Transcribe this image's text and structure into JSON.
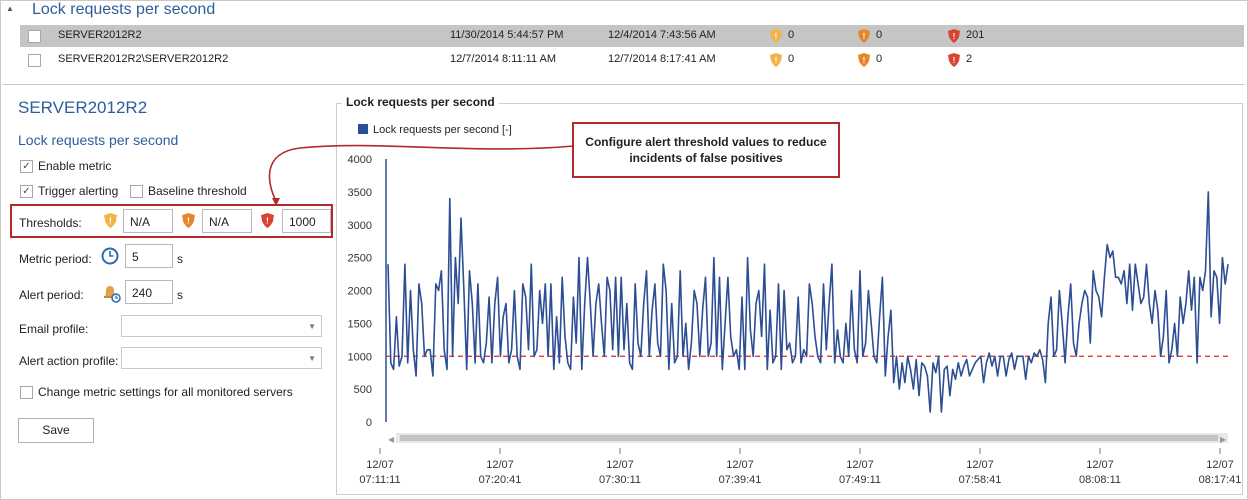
{
  "top_panel": {
    "title": "Lock requests per second",
    "rows": [
      {
        "server": "SERVER2012R2",
        "first": "11/30/2014 5:44:57 PM",
        "last": "12/4/2014 7:43:56 AM",
        "warn1": "0",
        "warn2": "0",
        "crit": "201",
        "selected": true
      },
      {
        "server": "SERVER2012R2\\SERVER2012R2",
        "first": "12/7/2014 8:11:11 AM",
        "last": "12/7/2014 8:17:41 AM",
        "warn1": "0",
        "warn2": "0",
        "crit": "2",
        "selected": false
      }
    ]
  },
  "settings": {
    "server_title": "SERVER2012R2",
    "metric_title": "Lock requests per second",
    "enable_metric": "Enable metric",
    "enable_metric_checked": true,
    "trigger_alerting": "Trigger alerting",
    "trigger_alerting_checked": true,
    "baseline_threshold": "Baseline threshold",
    "baseline_threshold_checked": false,
    "thresholds_label": "Thresholds:",
    "threshold_low": "N/A",
    "threshold_medium": "N/A",
    "threshold_high": "1000",
    "metric_period_label": "Metric period:",
    "metric_period_value": "5",
    "metric_period_unit": "s",
    "alert_period_label": "Alert period:",
    "alert_period_value": "240",
    "alert_period_unit": "s",
    "email_profile_label": "Email profile:",
    "alert_action_profile_label": "Alert action profile:",
    "change_all_label": "Change metric settings for all monitored servers",
    "change_all_checked": false,
    "save_label": "Save"
  },
  "callout_text": "Configure alert threshold values to reduce incidents of false positives",
  "colors": {
    "accent": "#2d5d9a",
    "series": "#2c4e94",
    "threshold": "#d62b2b",
    "highlight": "#b22a2a"
  },
  "chart_data": {
    "type": "line",
    "title": "Lock requests per second",
    "legend": "Lock requests per second [-]",
    "ylim": [
      0,
      4000
    ],
    "y_ticks": [
      0,
      500,
      1000,
      1500,
      2000,
      2500,
      3000,
      3500,
      4000
    ],
    "x_ticks": [
      [
        "12/07",
        "07:11:11"
      ],
      [
        "12/07",
        "07:20:41"
      ],
      [
        "12/07",
        "07:30:11"
      ],
      [
        "12/07",
        "07:39:41"
      ],
      [
        "12/07",
        "07:49:11"
      ],
      [
        "12/07",
        "07:58:41"
      ],
      [
        "12/07",
        "08:08:11"
      ],
      [
        "12/07",
        "08:17:41"
      ]
    ],
    "threshold": 1000,
    "series": [
      {
        "name": "Lock requests per second [-]",
        "values": [
          2400,
          900,
          800,
          1600,
          850,
          1000,
          2400,
          900,
          2000,
          1100,
          700,
          2100,
          1800,
          1000,
          1100,
          1100,
          700,
          2100,
          2000,
          2300,
          1100,
          800,
          3400,
          1000,
          2500,
          1800,
          3100,
          2000,
          800,
          2300,
          1800,
          900,
          2100,
          1000,
          900,
          1200,
          1900,
          900,
          1800,
          2200,
          1000,
          1600,
          1800,
          900,
          1100,
          2000,
          1000,
          800,
          2100,
          1900,
          1100,
          2400,
          1000,
          1100,
          2000,
          1500,
          2100,
          1000,
          2100,
          800,
          1600,
          900,
          2200,
          1300,
          900,
          800,
          1900,
          1200,
          2500,
          800,
          1800,
          2500,
          1800,
          1000,
          1800,
          2100,
          1500,
          1000,
          2200,
          2000,
          1100,
          2200,
          1000,
          2200,
          1100,
          1800,
          900,
          800,
          2100,
          1200,
          1000,
          1800,
          2300,
          1000,
          1700,
          2100,
          1200,
          1000,
          2400,
          2000,
          800,
          1800,
          900,
          1000,
          2300,
          1000,
          1500,
          800,
          1200,
          2000,
          1800,
          1000,
          1700,
          2200,
          1000,
          1200,
          2500,
          1000,
          2200,
          800,
          1500,
          2200,
          1300,
          1000,
          1100,
          800,
          1900,
          800,
          2500,
          1400,
          1000,
          1800,
          2000,
          1300,
          2400,
          800,
          1700,
          900,
          1000,
          2100,
          800,
          2000,
          1100,
          1200,
          900,
          1000,
          1900,
          900,
          1100,
          1000,
          2100,
          1800,
          1300,
          1000,
          900,
          2100,
          1100,
          1800,
          2400,
          900,
          1400,
          1000,
          900,
          1500,
          1000,
          2000,
          1100,
          900,
          2300,
          1000,
          1200,
          2000,
          1500,
          1000,
          900,
          1600,
          2200,
          700,
          1300,
          1700,
          600,
          1000,
          500,
          900,
          600,
          1000,
          800,
          500,
          950,
          400,
          900,
          850,
          700,
          150,
          900,
          750,
          1000,
          150,
          800,
          850,
          400,
          800,
          650,
          900,
          700,
          850,
          950,
          700,
          800,
          900,
          950,
          1000,
          600,
          900,
          1050,
          850,
          1000,
          700,
          1000,
          1000,
          700,
          950,
          1050,
          800,
          1000,
          1000,
          1000,
          650,
          1000,
          900,
          1050,
          1000,
          1100,
          950,
          600,
          1500,
          1900,
          1000,
          1100,
          2000,
          1500,
          900,
          1600,
          2100,
          1200,
          1000,
          1500,
          1800,
          2000,
          1900,
          1200,
          2300,
          2000,
          1900,
          1600,
          2200,
          2700,
          2500,
          2600,
          2200,
          2200,
          2100,
          2300,
          1800,
          2400,
          1700,
          2400,
          2100,
          1800,
          1900,
          2400,
          1800,
          1500,
          2000,
          1700,
          1000,
          1300,
          2000,
          900,
          1100,
          1500,
          1000,
          1900,
          1500,
          1800,
          2300,
          1700,
          2200,
          900,
          2200,
          2000,
          2300,
          3500,
          1600,
          2300,
          2200,
          1500,
          2500,
          2100,
          2400
        ]
      }
    ]
  }
}
